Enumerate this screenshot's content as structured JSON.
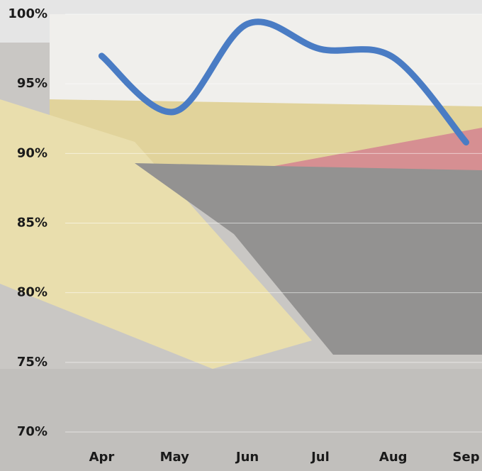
{
  "chart_data": {
    "type": "line",
    "categories": [
      "Apr",
      "May",
      "Jun",
      "Jul",
      "Aug",
      "Sep"
    ],
    "series": [
      {
        "color": "#4a7cc4",
        "values": [
          97.0,
          93.0,
          99.3,
          97.5,
          96.9,
          90.8
        ]
      }
    ],
    "ylim": [
      70,
      100
    ],
    "yticks": [
      {
        "value": 70,
        "label": "70%"
      },
      {
        "value": 75,
        "label": "75%"
      },
      {
        "value": 80,
        "label": "80%"
      },
      {
        "value": 85,
        "label": "85%"
      },
      {
        "value": 90,
        "label": "90%"
      },
      {
        "value": 95,
        "label": "95%"
      },
      {
        "value": 100,
        "label": "100%"
      }
    ],
    "grid": true
  }
}
